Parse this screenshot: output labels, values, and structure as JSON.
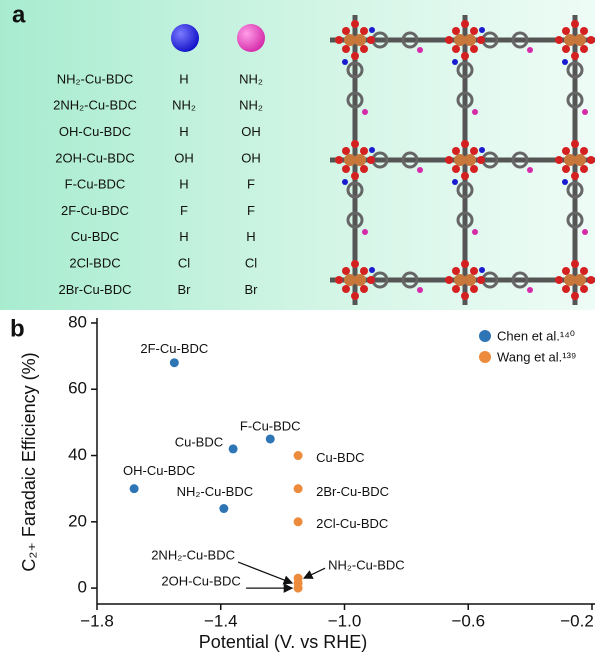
{
  "panel_a": {
    "label": "a",
    "rows": [
      [
        "NH₂-Cu-BDC",
        "H",
        "NH₂"
      ],
      [
        "2NH₂-Cu-BDC",
        "NH₂",
        "NH₂"
      ],
      [
        "OH-Cu-BDC",
        "H",
        "OH"
      ],
      [
        "2OH-Cu-BDC",
        "OH",
        "OH"
      ],
      [
        "F-Cu-BDC",
        "H",
        "F"
      ],
      [
        "2F-Cu-BDC",
        "F",
        "F"
      ],
      [
        "Cu-BDC",
        "H",
        "H"
      ],
      [
        "2Cl-BDC",
        "Cl",
        "Cl"
      ],
      [
        "2Br-Cu-BDC",
        "Br",
        "Br"
      ]
    ]
  },
  "chart_data": {
    "type": "scatter",
    "panel_label": "b",
    "xlabel": "Potential (V. vs RHE)",
    "ylabel": "C₂₊ Faradaic Efficiency (%)",
    "xlim": [
      -1.8,
      -0.2
    ],
    "xticks": [
      {
        "value": -1.8,
        "label": "−1.8"
      },
      {
        "value": -1.4,
        "label": "−1.4"
      },
      {
        "value": -1.0,
        "label": "−1.0"
      },
      {
        "value": -0.6,
        "label": "−0.6"
      },
      {
        "value": -0.2,
        "label": "−0.2"
      }
    ],
    "ylim": [
      -4.8,
      81.5
    ],
    "yticks": [
      0,
      20,
      40,
      60,
      80
    ],
    "legend": "upper right",
    "series": [
      {
        "name": "Chen et al.¹⁴⁰",
        "color": "#2e75b6",
        "x": [
          -1.55,
          -1.24,
          -1.36,
          -1.68,
          -1.39
        ],
        "values": [
          68,
          45,
          42,
          30,
          24
        ],
        "labels": [
          "2F-Cu-BDC",
          "F-Cu-BDC",
          "Cu-BDC",
          "OH-Cu-BDC",
          "NH₂-Cu-BDC"
        ]
      },
      {
        "name": "Wang et al.¹³⁹",
        "color": "#ed8b3c",
        "x": [
          -1.15,
          -1.15,
          -1.15,
          -1.15,
          -1.15,
          -1.15
        ],
        "values": [
          40,
          30,
          20,
          3,
          1.5,
          0
        ],
        "labels": [
          "Cu-BDC",
          "2Br-Cu-BDC",
          "2Cl-Cu-BDC",
          "NH₂-Cu-BDC",
          "2NH₂-Cu-BDC",
          "2OH-Cu-BDC"
        ]
      }
    ]
  }
}
